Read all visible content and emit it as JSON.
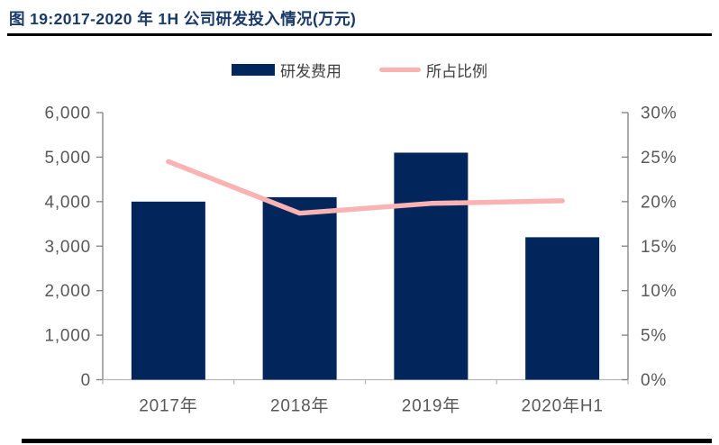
{
  "header": {
    "title": "图 19:2017-2020 年 1H 公司研发投入情况(万元)"
  },
  "chart_data": {
    "type": "bar+line combo",
    "title": "图 19:2017-2020 年 1H 公司研发投入情况(万元)",
    "categories": [
      "2017年",
      "2018年",
      "2019年",
      "2020年H1"
    ],
    "series": [
      {
        "name": "研发费用",
        "type": "bar",
        "axis": "left",
        "color": "#02265B",
        "values": [
          4000,
          4100,
          5100,
          3200
        ]
      },
      {
        "name": "所占比例",
        "type": "line",
        "axis": "right",
        "color": "#FAB3B3",
        "values": [
          24.5,
          18.7,
          19.8,
          20.1
        ]
      }
    ],
    "left_axis": {
      "min": 0,
      "max": 6000,
      "step": 1000,
      "labels": [
        "0",
        "1,000",
        "2,000",
        "3,000",
        "4,000",
        "5,000",
        "6,000"
      ]
    },
    "right_axis": {
      "min": 0,
      "max": 30,
      "step": 5,
      "labels": [
        "0%",
        "5%",
        "10%",
        "15%",
        "20%",
        "25%",
        "30%"
      ]
    },
    "grid": false,
    "legend_position": "top-center"
  }
}
